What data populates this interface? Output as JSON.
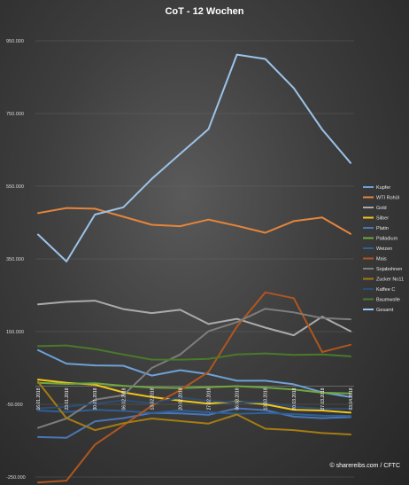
{
  "chart_data": {
    "type": "line",
    "title": "CoT - 12 Wochen",
    "credit": "© sharereibs.com / CFTC",
    "y_ticks": [
      950000,
      750000,
      550000,
      350000,
      150000,
      -50000,
      -250000
    ],
    "y_tick_labels": [
      "950.000",
      "750.000",
      "550.000",
      "350.000",
      "150.000",
      "-50.000",
      "-250.000"
    ],
    "ylim": [
      -250000,
      950000
    ],
    "legend_position": "right",
    "grid": true,
    "categories": [
      "16.01.2018",
      "23.01.2018",
      "30.01.2018",
      "06.02.2018",
      "13.02.2018",
      "20.02.2018",
      "27.02.2018",
      "06.03.2018",
      "13.03.2018",
      "20.03.2018",
      "27.03.2018",
      "03.04.2018"
    ],
    "series": [
      {
        "name": "Kupfer",
        "color": "#6fa1d6",
        "values": [
          99000,
          62000,
          57000,
          56000,
          29000,
          44000,
          33000,
          15000,
          15000,
          5000,
          -17000,
          -30000
        ]
      },
      {
        "name": "WTI Rohöl",
        "color": "#e6853a",
        "values": [
          476000,
          490000,
          488000,
          466000,
          444000,
          440000,
          458000,
          441000,
          422000,
          454000,
          464000,
          419000
        ]
      },
      {
        "name": "Gold",
        "color": "#ababab",
        "values": [
          225000,
          232000,
          235000,
          212000,
          201000,
          210000,
          171000,
          185000,
          161000,
          140000,
          191000,
          151000
        ]
      },
      {
        "name": "Silber",
        "color": "#f2c619",
        "values": [
          18000,
          9000,
          4000,
          -17000,
          -30000,
          -40000,
          -48000,
          -42000,
          -50000,
          -65000,
          -67000,
          -73000
        ]
      },
      {
        "name": "Platin",
        "color": "#4a76b6",
        "values": [
          -140000,
          -142000,
          -97000,
          -88000,
          -74000,
          -75000,
          -79000,
          -61000,
          -66000,
          -84000,
          -88000,
          -85000
        ]
      },
      {
        "name": "Palladium",
        "color": "#6fa83f",
        "values": [
          9000,
          6000,
          8000,
          1000,
          -4000,
          -5000,
          -3000,
          0,
          -4000,
          -9000,
          -18000,
          -20000
        ]
      },
      {
        "name": "Weizen",
        "color": "#2e5f96",
        "values": [
          -67000,
          -71000,
          -65000,
          -68000,
          -74000,
          -67000,
          -72000,
          -76000,
          -74000,
          -77000,
          -81000,
          -82000
        ]
      },
      {
        "name": "Mais",
        "color": "#b0561e",
        "values": [
          -265000,
          -260000,
          -161000,
          -108000,
          -54000,
          -11000,
          39000,
          164000,
          258000,
          242000,
          94000,
          114000
        ]
      },
      {
        "name": "Sojabohnen",
        "color": "#7d7d7d",
        "values": [
          -115000,
          -89000,
          -37000,
          -25000,
          50000,
          87000,
          151000,
          176000,
          213000,
          203000,
          187000,
          184000
        ]
      },
      {
        "name": "Zucker No11",
        "color": "#a57c12",
        "values": [
          12000,
          -88000,
          -121000,
          -102000,
          -89000,
          -96000,
          -103000,
          -78000,
          -117000,
          -121000,
          -129000,
          -133000
        ]
      },
      {
        "name": "Kaffee C",
        "color": "#2d4d72",
        "values": [
          -61000,
          -57000,
          -48000,
          -39000,
          -47000,
          -31000,
          -41000,
          -44000,
          -45000,
          -57000,
          -62000,
          -62000
        ]
      },
      {
        "name": "Baumwolle",
        "color": "#4a7a2a",
        "values": [
          110000,
          112000,
          102000,
          87000,
          73000,
          73000,
          75000,
          87000,
          90000,
          86000,
          87000,
          82000
        ]
      },
      {
        "name": "Gesamt",
        "color": "#9cc3e8",
        "values": [
          417000,
          343000,
          472000,
          492000,
          570000,
          639000,
          707000,
          912000,
          900000,
          820000,
          706000,
          614000
        ]
      }
    ]
  }
}
